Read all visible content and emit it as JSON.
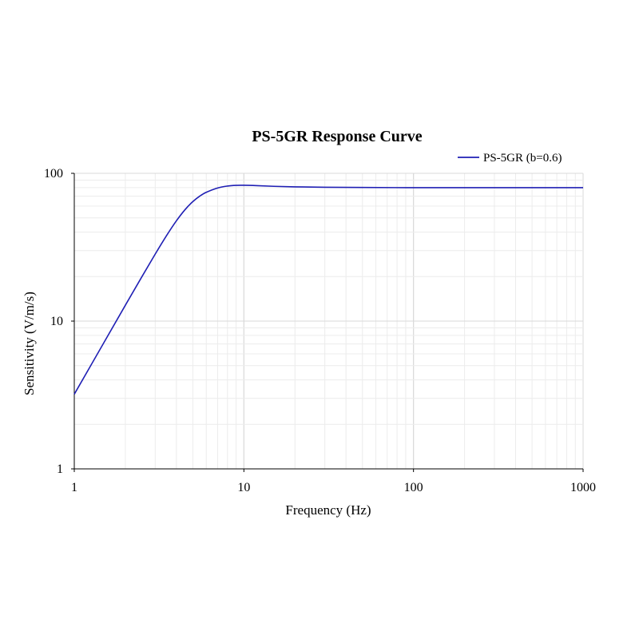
{
  "chart_data": {
    "type": "line",
    "title": "PS-5GR Response Curve",
    "xlabel": "Frequency (Hz)",
    "ylabel": "Sensitivity  (V/m/s)",
    "x_scale": "log",
    "y_scale": "log",
    "xlim": [
      1,
      1000
    ],
    "ylim": [
      1,
      100
    ],
    "x_ticks": [
      "1",
      "10",
      "100",
      "1000"
    ],
    "y_ticks": [
      "1",
      "10",
      "100"
    ],
    "grid": true,
    "legend_position": "top-right",
    "series": [
      {
        "name": "PS-5GR (b=0.6)",
        "color": "#1f1fb4",
        "x": [
          1,
          1.5,
          2,
          2.5,
          3,
          3.5,
          4,
          4.5,
          5,
          5.5,
          6,
          7,
          8,
          9,
          10,
          12,
          15,
          20,
          30,
          50,
          100,
          200,
          500,
          1000
        ],
        "y": [
          3.2,
          7.2,
          12.8,
          19.9,
          28.4,
          37.9,
          47.7,
          56.8,
          64.4,
          70.2,
          74.4,
          79.6,
          82.0,
          82.9,
          83.0,
          82.5,
          81.7,
          81.0,
          80.5,
          80.2,
          80.0,
          80.0,
          80.0,
          80.0
        ]
      }
    ]
  }
}
